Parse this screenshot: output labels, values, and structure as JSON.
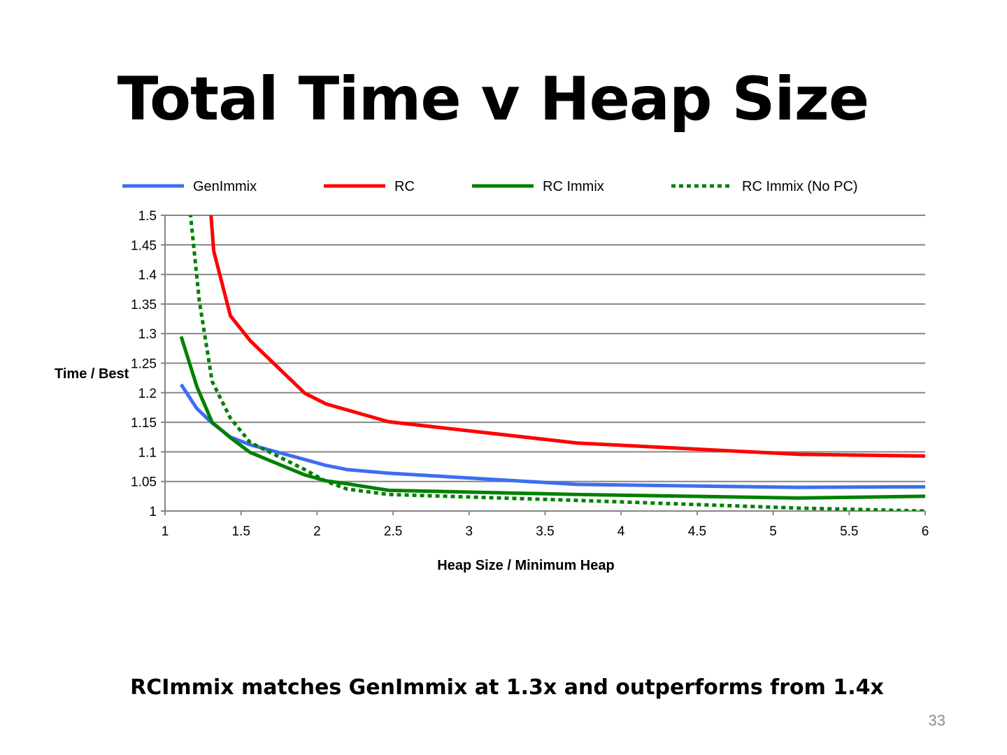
{
  "slide": {
    "title": "Total Time v Heap Size",
    "subtitle": "RCImmix matches GenImmix at 1.3x and outperforms from 1.4x",
    "page_number": "33"
  },
  "chart_data": {
    "type": "line",
    "title": "",
    "xlabel": "Heap Size / Minimum Heap",
    "ylabel": "Time / Best",
    "xlim": [
      1,
      6
    ],
    "ylim": [
      1,
      1.5
    ],
    "xticks": [
      "1",
      "1.5",
      "2",
      "2.5",
      "3",
      "3.5",
      "4",
      "4.5",
      "5",
      "5.5",
      "6"
    ],
    "yticks": [
      "1",
      "1.05",
      "1.1",
      "1.15",
      "1.2",
      "1.25",
      "1.3",
      "1.35",
      "1.4",
      "1.45",
      "1.5"
    ],
    "grid": "horizontal",
    "legend_position": "top",
    "series": [
      {
        "name": "GenImmix",
        "color": "#3c6ef0",
        "dash": "solid",
        "x": [
          1.106,
          1.207,
          1.3,
          1.43,
          1.56,
          1.92,
          2.06,
          2.2,
          2.47,
          3.71,
          5.16,
          6.0
        ],
        "y": [
          1.214,
          1.174,
          1.151,
          1.125,
          1.112,
          1.087,
          1.077,
          1.07,
          1.064,
          1.045,
          1.04,
          1.041
        ]
      },
      {
        "name": "RC",
        "color": "#ff0000",
        "dash": "solid",
        "x": [
          1.285,
          1.32,
          1.43,
          1.56,
          1.92,
          2.06,
          2.47,
          3.71,
          5.16,
          6.0
        ],
        "y": [
          1.56,
          1.44,
          1.33,
          1.288,
          1.199,
          1.181,
          1.151,
          1.115,
          1.096,
          1.093
        ]
      },
      {
        "name": "RC Immix",
        "color": "#008000",
        "dash": "solid",
        "x": [
          1.106,
          1.21,
          1.31,
          1.43,
          1.56,
          1.92,
          2.06,
          2.2,
          2.47,
          3.71,
          5.16,
          6.0
        ],
        "y": [
          1.295,
          1.21,
          1.15,
          1.124,
          1.099,
          1.061,
          1.051,
          1.046,
          1.035,
          1.028,
          1.022,
          1.025
        ]
      },
      {
        "name": "RC Immix (No PC)",
        "color": "#008000",
        "dash": "dotted",
        "x": [
          1.12,
          1.225,
          1.31,
          1.43,
          1.56,
          1.92,
          2.06,
          2.2,
          2.47,
          3.71,
          5.16,
          6.0
        ],
        "y": [
          1.62,
          1.356,
          1.219,
          1.157,
          1.116,
          1.07,
          1.05,
          1.037,
          1.028,
          1.018,
          1.005,
          1.0
        ]
      }
    ]
  }
}
